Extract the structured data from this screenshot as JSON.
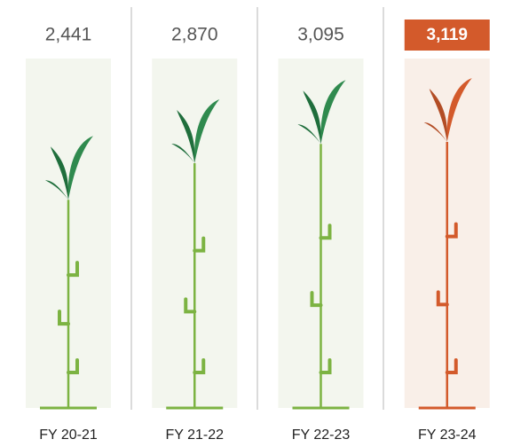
{
  "chart_data": {
    "type": "bar",
    "categories": [
      "FY 20-21",
      "FY 21-22",
      "FY 22-23",
      "FY 23-24"
    ],
    "values": [
      2441,
      2870,
      3095,
      3119
    ],
    "value_labels": [
      "2,441",
      "2,870",
      "3,095",
      "3,119"
    ],
    "colors": [
      "#7cb342",
      "#7cb342",
      "#7cb342",
      "#d35a2b"
    ],
    "highlight": 3
  }
}
